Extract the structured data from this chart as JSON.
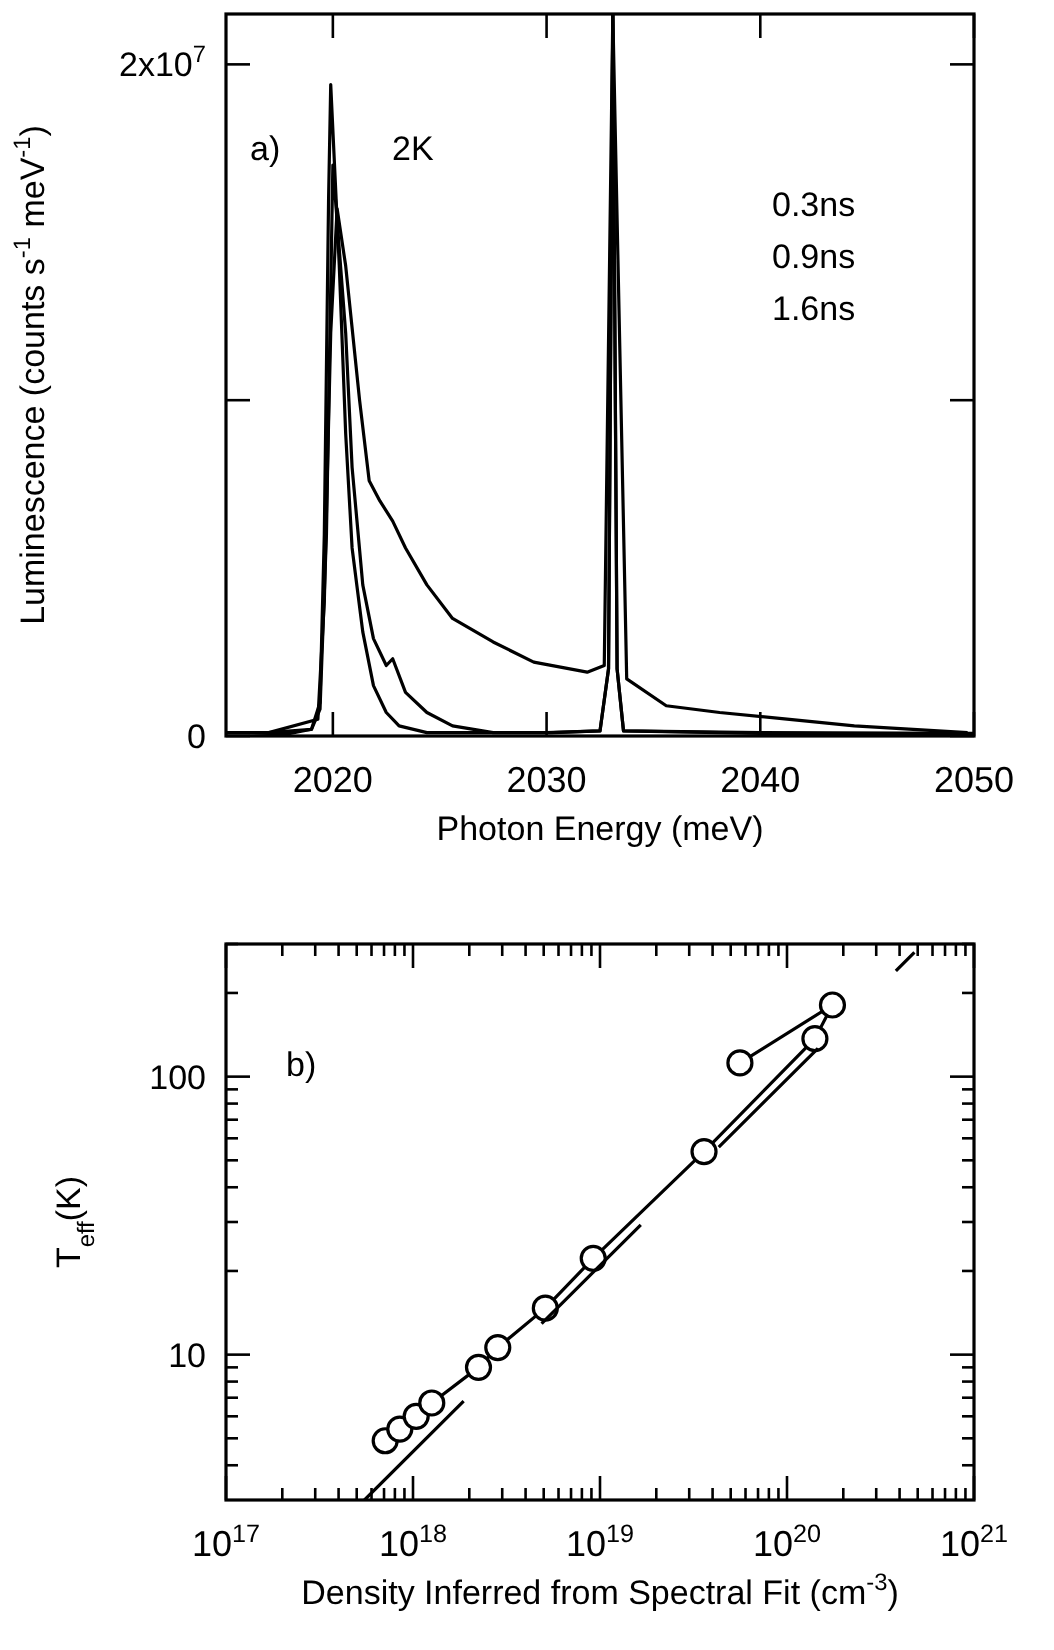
{
  "chart_data": [
    {
      "type": "line",
      "xlabel": "Photon Energy (meV)",
      "ylabel": "Luminescence (counts s$^{-1}$ meV$^{-1}$)",
      "annotations": [
        "a)",
        "2K",
        "0.3ns",
        "0.9ns",
        "1.6ns"
      ],
      "xlim": [
        2015,
        2050
      ],
      "ylim": [
        0,
        21500000
      ],
      "xticks": [
        2020,
        2030,
        2040,
        2050
      ],
      "yticks": [
        0,
        {
          "value": 10000000,
          "label": null
        },
        {
          "value": 20000000,
          "label": "2x10$^{7}$"
        }
      ],
      "series": [
        {
          "color": "#000000",
          "x": [
            2015,
            2016,
            2017,
            2018,
            2019,
            2019.4,
            2019.6,
            2019.8,
            2019.9,
            2020.3,
            2020.6,
            2020.9,
            2021.4,
            2021.9,
            2022.5,
            2023.1,
            2024.4,
            2027,
            2030,
            2032.5,
            2032.9,
            2033.1,
            2033.3,
            2033.6,
            2040,
            2050
          ],
          "values": [
            100000,
            100000,
            80000,
            80000,
            200000,
            1000000,
            6000000,
            16000000,
            19400000,
            14000000,
            9000000,
            5600000,
            3100000,
            1500000,
            700000,
            300000,
            100000,
            100000,
            100000,
            150000,
            2000000,
            21500000,
            2000000,
            150000,
            80000,
            60000
          ]
        },
        {
          "color": "#000000",
          "x": [
            2015,
            2017,
            2019,
            2019.4,
            2019.7,
            2020,
            2020.6,
            2020.9,
            2021.4,
            2021.9,
            2022.5,
            2022.8,
            2023.4,
            2024.4,
            2025.6,
            2027.5,
            2030.3,
            2032.5,
            2032.9,
            2033.1,
            2033.3,
            2033.6,
            2040,
            2050
          ],
          "values": [
            100000,
            100000,
            200000,
            800000,
            6000000,
            17000000,
            12000000,
            8000000,
            4500000,
            2900000,
            2100000,
            2300000,
            1300000,
            700000,
            300000,
            100000,
            100000,
            150000,
            2000000,
            21500000,
            2000000,
            150000,
            100000,
            80000
          ]
        },
        {
          "color": "#000000",
          "x": [
            2015,
            2017,
            2019.3,
            2019.6,
            2019.9,
            2020.2,
            2020.6,
            2021.25,
            2021.7,
            2022.2,
            2022.8,
            2023.4,
            2024.4,
            2025.6,
            2027.5,
            2029.4,
            2031.9,
            2032.7,
            2033.1,
            2033.75,
            2035.6,
            2038.1,
            2041.25,
            2044.4,
            2049.7
          ],
          "values": [
            100000,
            100000,
            500000,
            4000000,
            12000000,
            15700000,
            14000000,
            10000000,
            7600000,
            7000000,
            6400000,
            5600000,
            4500000,
            3500000,
            2800000,
            2200000,
            1900000,
            2100000,
            21500000,
            1700000,
            900000,
            700000,
            500000,
            300000,
            100000
          ]
        }
      ]
    },
    {
      "type": "line",
      "xlabel": "Density Inferred from Spectral Fit (cm$^{-3}$)",
      "ylabel": "T$_{eff}$(K)",
      "annotations": [
        "b)"
      ],
      "log": "xy",
      "xlim": [
        1e+17,
        1e+21
      ],
      "ylim": [
        3,
        300
      ],
      "xticks": [
        {
          "value": 1e+17,
          "label": "10$^{17}$"
        },
        {
          "value": 2e+17,
          "label": null
        },
        {
          "value": 3e+17,
          "label": null
        },
        {
          "value": 4e+17,
          "label": null
        },
        {
          "value": 5e+17,
          "label": null
        },
        {
          "value": 6e+17,
          "label": null
        },
        {
          "value": 7e+17,
          "label": null
        },
        {
          "value": 8e+17,
          "label": null
        },
        {
          "value": 9e+17,
          "label": null
        },
        {
          "value": 1e+18,
          "label": "10$^{18}$"
        },
        {
          "value": 2e+18,
          "label": null
        },
        {
          "value": 3e+18,
          "label": null
        },
        {
          "value": 4e+18,
          "label": null
        },
        {
          "value": 5e+18,
          "label": null
        },
        {
          "value": 6e+18,
          "label": null
        },
        {
          "value": 7e+18,
          "label": null
        },
        {
          "value": 8e+18,
          "label": null
        },
        {
          "value": 9e+18,
          "label": null
        },
        {
          "value": 1e+19,
          "label": "10$^{19}$"
        },
        {
          "value": 2e+19,
          "label": null
        },
        {
          "value": 3e+19,
          "label": null
        },
        {
          "value": 4e+19,
          "label": null
        },
        {
          "value": 5e+19,
          "label": null
        },
        {
          "value": 6e+19,
          "label": null
        },
        {
          "value": 7e+19,
          "label": null
        },
        {
          "value": 8e+19,
          "label": null
        },
        {
          "value": 9e+19,
          "label": null
        },
        {
          "value": 1e+20,
          "label": "10$^{20}$"
        },
        {
          "value": 2e+20,
          "label": null
        },
        {
          "value": 3e+20,
          "label": null
        },
        {
          "value": 4e+20,
          "label": null
        },
        {
          "value": 5e+20,
          "label": null
        },
        {
          "value": 6e+20,
          "label": null
        },
        {
          "value": 7e+20,
          "label": null
        },
        {
          "value": 8e+20,
          "label": null
        },
        {
          "value": 9e+20,
          "label": null
        },
        {
          "value": 1e+21,
          "label": "10$^{21}$"
        }
      ],
      "yticks": [
        {
          "value": 4,
          "label": null
        },
        {
          "value": 5,
          "label": null
        },
        {
          "value": 6,
          "label": null
        },
        {
          "value": 7,
          "label": null
        },
        {
          "value": 8,
          "label": null
        },
        {
          "value": 9,
          "label": null
        },
        10,
        {
          "value": 20,
          "label": null
        },
        {
          "value": 30,
          "label": null
        },
        {
          "value": 40,
          "label": null
        },
        {
          "value": 50,
          "label": null
        },
        {
          "value": 60,
          "label": null
        },
        {
          "value": 70,
          "label": null
        },
        {
          "value": 80,
          "label": null
        },
        {
          "value": 90,
          "label": null
        },
        100,
        {
          "value": 200,
          "label": null
        },
        {
          "value": 300,
          "label": null
        }
      ],
      "series": [
        {
          "color": "#000000",
          "marker": "circle",
          "x": [
            7.1e+17,
            8.5e+17,
            1.04e+18,
            1.26e+18,
            2.24e+18,
            2.84e+18,
            5.1e+18,
            9.2e+18,
            3.6e+19,
            1.41e+20,
            1.75e+20,
            5.6e+19
          ],
          "values": [
            4.9,
            5.4,
            6.0,
            6.7,
            9.0,
            10.6,
            14.7,
            22.2,
            53.7,
            137,
            181,
            112
          ]
        },
        {
          "color": "#000000",
          "line_style": "dashed",
          "x": [
            5.5e+17,
            4.8e+20
          ],
          "values": [
            3,
            280
          ]
        }
      ]
    }
  ]
}
